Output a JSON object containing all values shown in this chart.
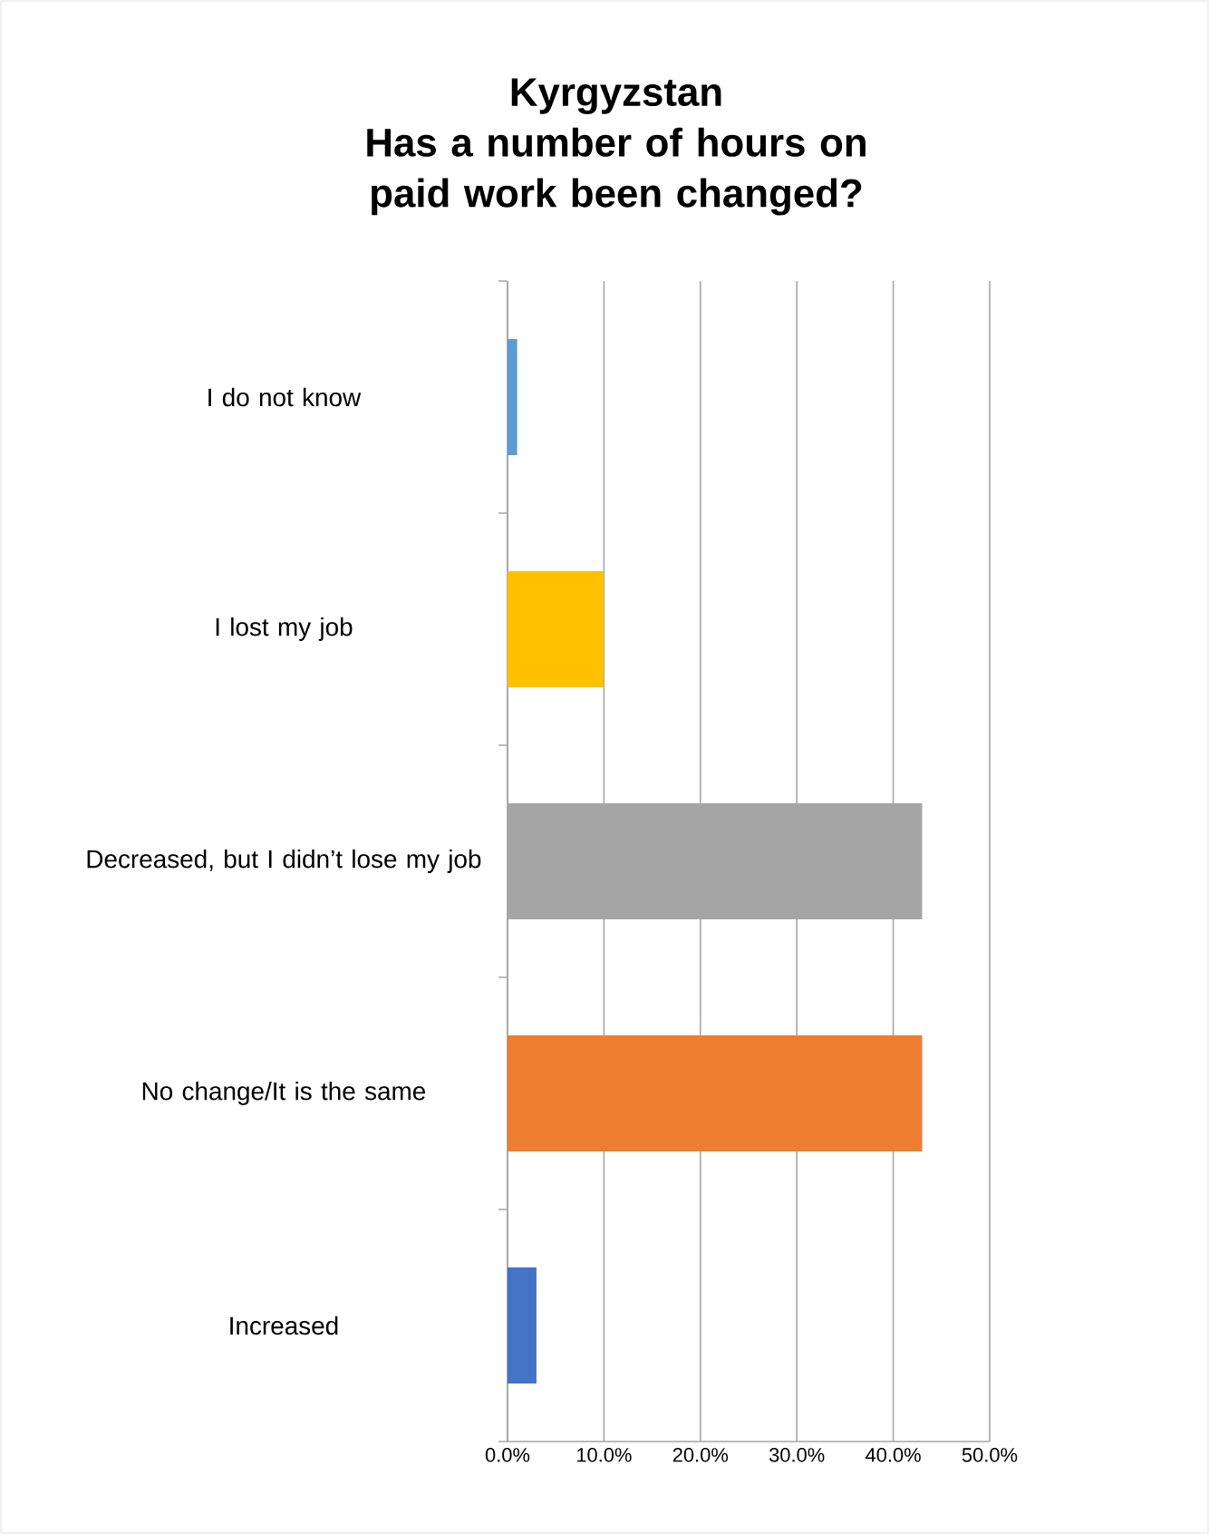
{
  "chart_data": {
    "type": "bar",
    "orientation": "horizontal",
    "title": "Kyrgyzstan\nHas a number of hours on paid work been changed?",
    "categories": [
      "I do not know",
      "I lost my job",
      "Decreased, but I didn’t lose my job",
      "No change/It is the same",
      "Increased"
    ],
    "values": [
      1,
      10,
      43,
      43,
      3
    ],
    "colors": [
      "#5b9bd5",
      "#ffc000",
      "#a5a5a5",
      "#ed7d31",
      "#4472c4"
    ],
    "xlim": [
      0,
      50
    ],
    "xticks": [
      {
        "value": 0,
        "label": "0.0%"
      },
      {
        "value": 10,
        "label": "10.0%"
      },
      {
        "value": 20,
        "label": "20.0%"
      },
      {
        "value": 30,
        "label": "30.0%"
      },
      {
        "value": 40,
        "label": "40.0%"
      },
      {
        "value": 50,
        "label": "50.0%"
      }
    ],
    "grid": "x"
  }
}
